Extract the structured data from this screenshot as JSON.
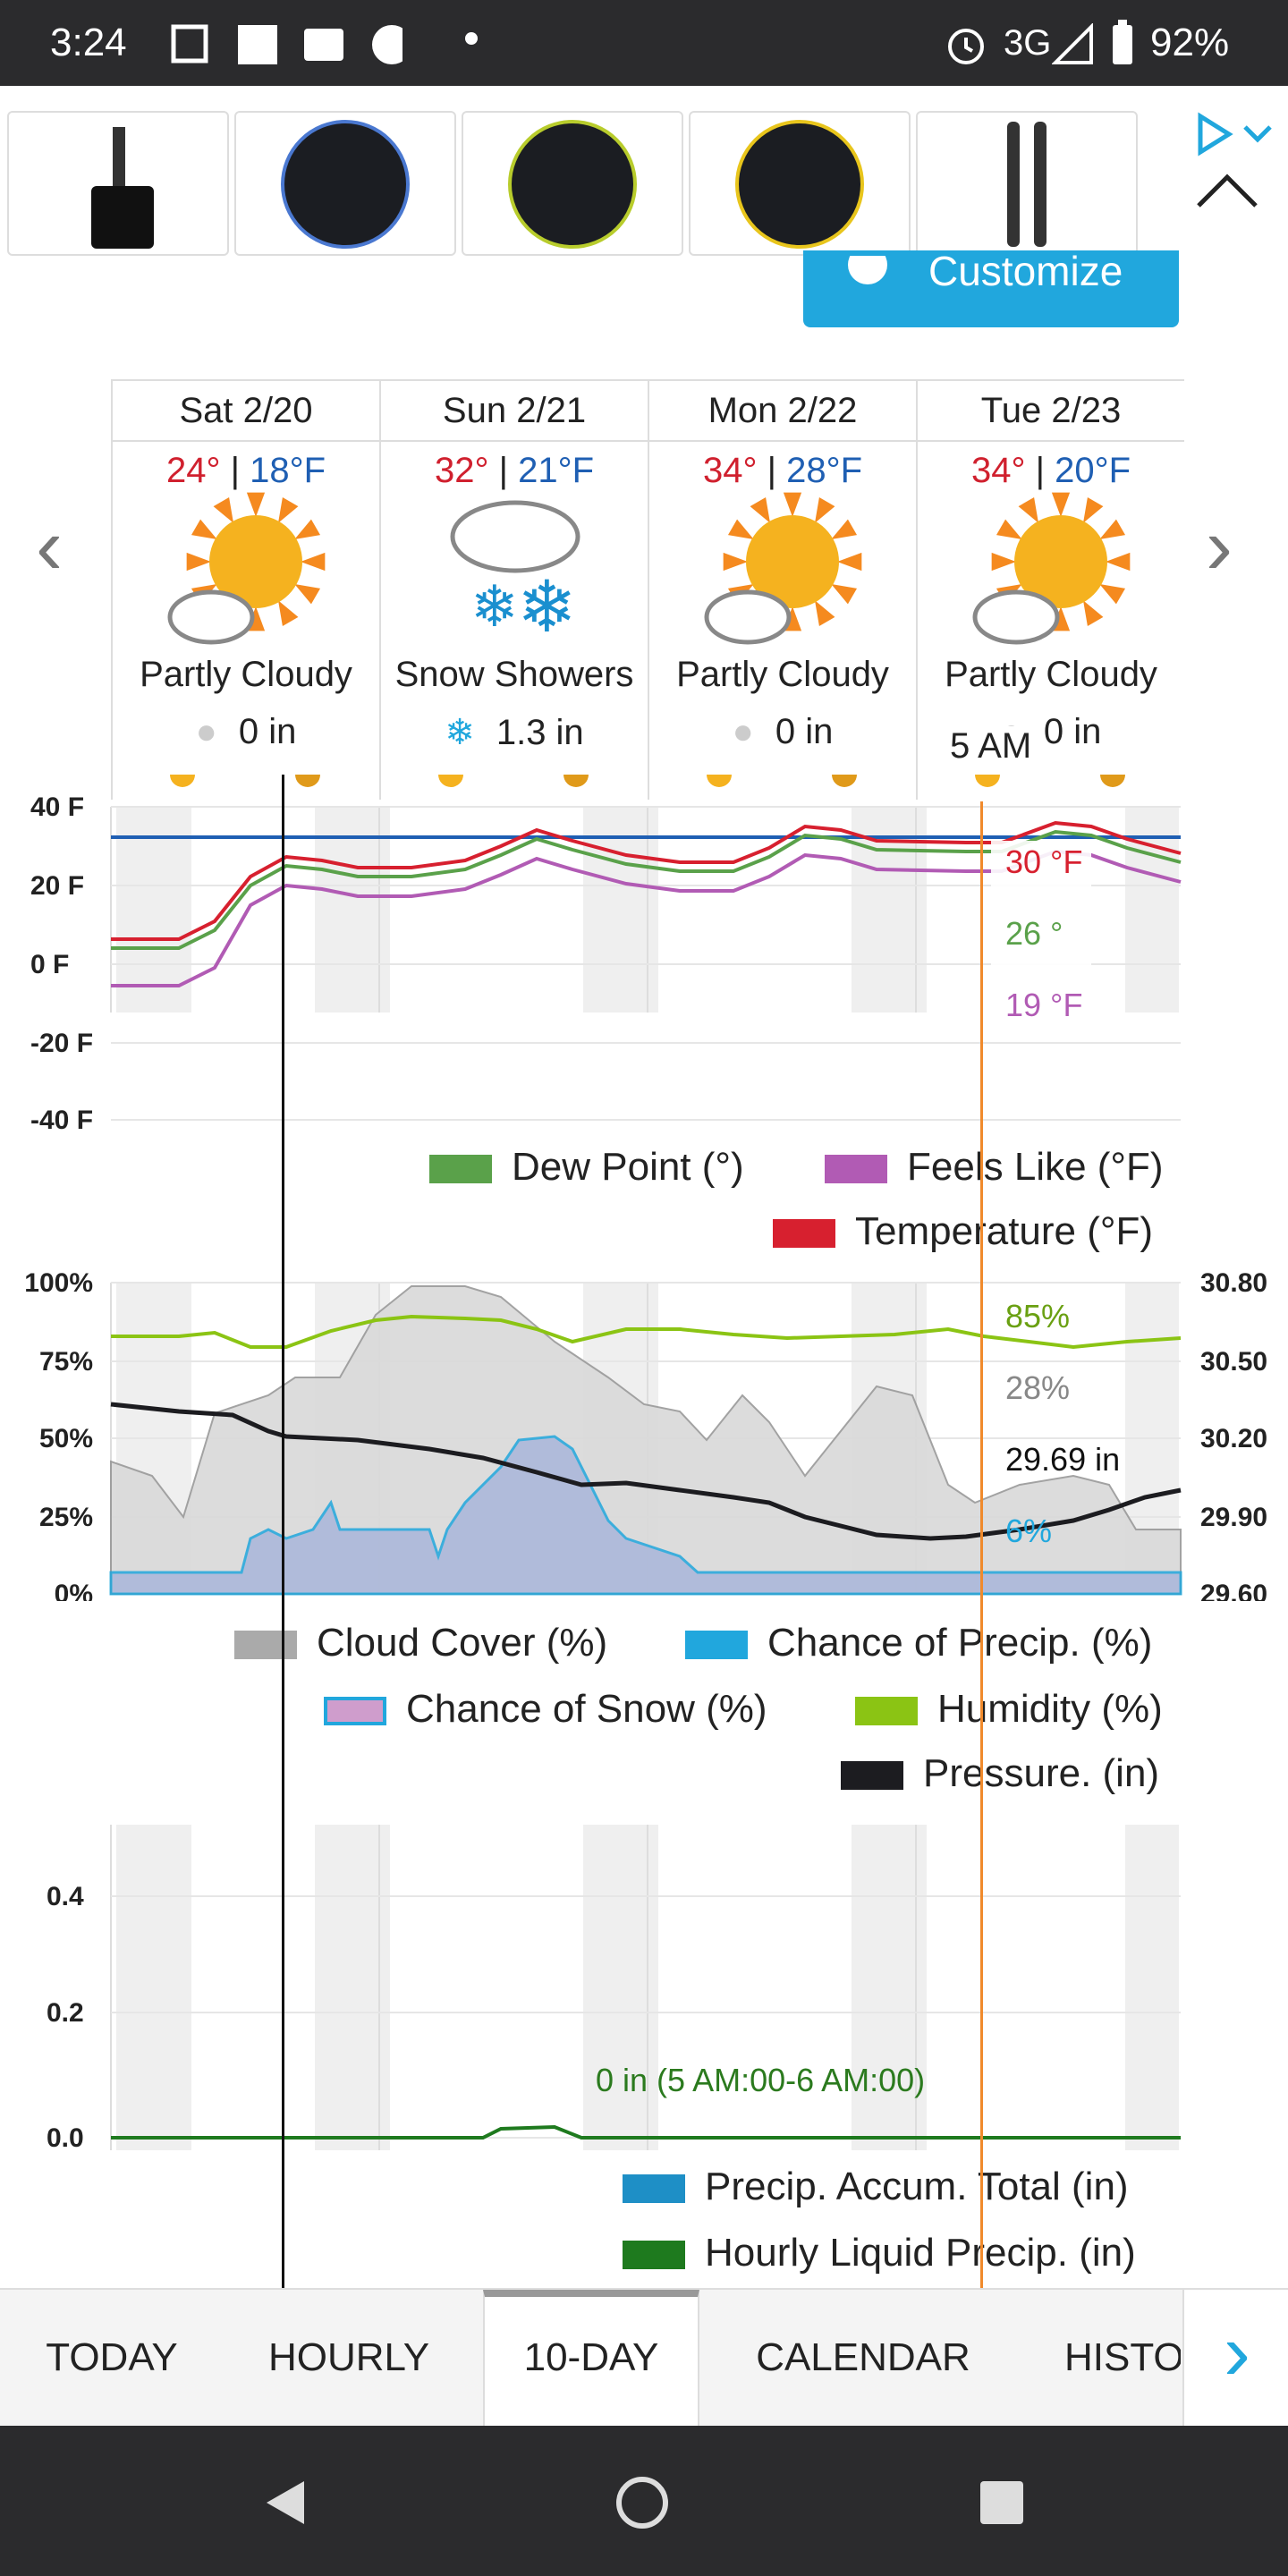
{
  "status": {
    "time": "3:24",
    "network": "3G",
    "battery": "92%"
  },
  "customize_label": "Customize",
  "days": [
    {
      "name": "Sat 2/20",
      "hi": "24°",
      "lo": "18°F",
      "condition": "Partly Cloudy",
      "precip": "0 in",
      "icon": "partly-cloudy"
    },
    {
      "name": "Sun 2/21",
      "hi": "32°",
      "lo": "21°F",
      "condition": "Snow Showers",
      "precip": "1.3 in",
      "icon": "snow-showers"
    },
    {
      "name": "Mon 2/22",
      "hi": "34°",
      "lo": "28°F",
      "condition": "Partly Cloudy",
      "precip": "0 in",
      "icon": "partly-cloudy"
    },
    {
      "name": "Tue 2/23",
      "hi": "34°",
      "lo": "20°F",
      "condition": "Partly Cloudy",
      "precip": "0 in",
      "icon": "partly-cloudy"
    }
  ],
  "hover_time": "5 AM",
  "temp_chart": {
    "y_ticks": [
      "40 F",
      "20 F",
      "0 F",
      "-20 F",
      "-40 F"
    ],
    "tooltip": {
      "temp": "30 °F",
      "dew": "26 °",
      "feels": "19 °F"
    },
    "legend": [
      "Dew Point (°)",
      "Feels Like (°F)",
      "Temperature (°F)"
    ],
    "colors": {
      "temp": "#d7202f",
      "dew": "#5aa14a",
      "feels": "#b15bb4",
      "freeze": "#1f5fb3"
    }
  },
  "atmos_chart": {
    "y_ticks_left": [
      "100%",
      "75%",
      "50%",
      "25%",
      "0%"
    ],
    "y_ticks_right": [
      "30.80",
      "30.50",
      "30.20",
      "29.90",
      "29.60"
    ],
    "tooltip": {
      "humidity": "85%",
      "cloud": "28%",
      "pressure": "29.69 in",
      "precip": "6%"
    },
    "legend": [
      "Cloud Cover (%)",
      "Chance of Precip. (%)",
      "Chance of Snow (%)",
      "Humidity (%)",
      "Pressure. (in)"
    ]
  },
  "precip_chart": {
    "y_ticks": [
      "0.4",
      "0.2",
      "0.0"
    ],
    "tooltip": "0 in (5 AM:00-6 AM:00)",
    "legend": [
      "Precip. Accum. Total (in)",
      "Hourly Liquid Precip. (in)"
    ]
  },
  "tabs": [
    "TODAY",
    "HOURLY",
    "10-DAY",
    "CALENDAR",
    "HISTO"
  ]
}
